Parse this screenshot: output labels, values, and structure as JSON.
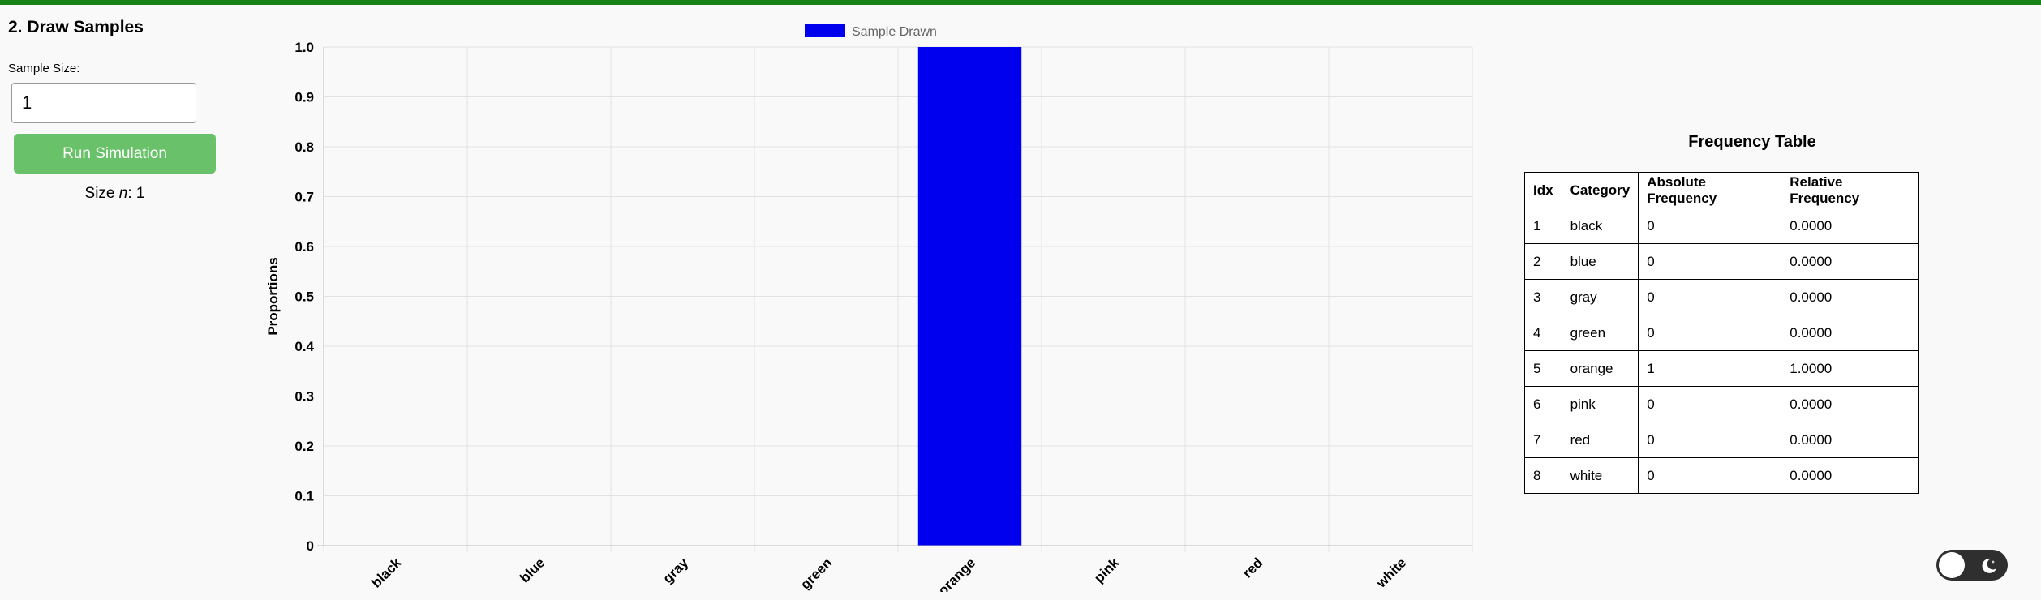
{
  "section": {
    "title": "2. Draw Samples"
  },
  "controls": {
    "sample_size_label": "Sample Size:",
    "sample_size_value": "1",
    "run_button_label": "Run Simulation",
    "size_prefix": "Size ",
    "size_var": "n",
    "size_suffix": ": 1"
  },
  "chart_data": {
    "type": "bar",
    "categories": [
      "black",
      "blue",
      "gray",
      "green",
      "orange",
      "pink",
      "red",
      "white"
    ],
    "series": [
      {
        "name": "Sample Drawn",
        "color": "#0000ee",
        "values": [
          0,
          0,
          0,
          0,
          1,
          0,
          0,
          0
        ]
      }
    ],
    "ylabel": "Proportions",
    "ylim": [
      0,
      1
    ],
    "yticks": [
      "0",
      "0.1",
      "0.2",
      "0.3",
      "0.4",
      "0.5",
      "0.6",
      "0.7",
      "0.8",
      "0.9",
      "1.0"
    ],
    "grid": true,
    "legend": "top-center"
  },
  "frequency_table": {
    "title": "Frequency Table",
    "headers": [
      "Idx",
      "Category",
      "Absolute Frequency",
      "Relative Frequency"
    ],
    "rows": [
      [
        "1",
        "black",
        "0",
        "0.0000"
      ],
      [
        "2",
        "blue",
        "0",
        "0.0000"
      ],
      [
        "3",
        "gray",
        "0",
        "0.0000"
      ],
      [
        "4",
        "green",
        "0",
        "0.0000"
      ],
      [
        "5",
        "orange",
        "1",
        "1.0000"
      ],
      [
        "6",
        "pink",
        "0",
        "0.0000"
      ],
      [
        "7",
        "red",
        "0",
        "0.0000"
      ],
      [
        "8",
        "white",
        "0",
        "0.0000"
      ]
    ]
  },
  "theme": {
    "accent": "#178217",
    "button": "#69c16a",
    "toggle_icon": "moon-icon"
  }
}
